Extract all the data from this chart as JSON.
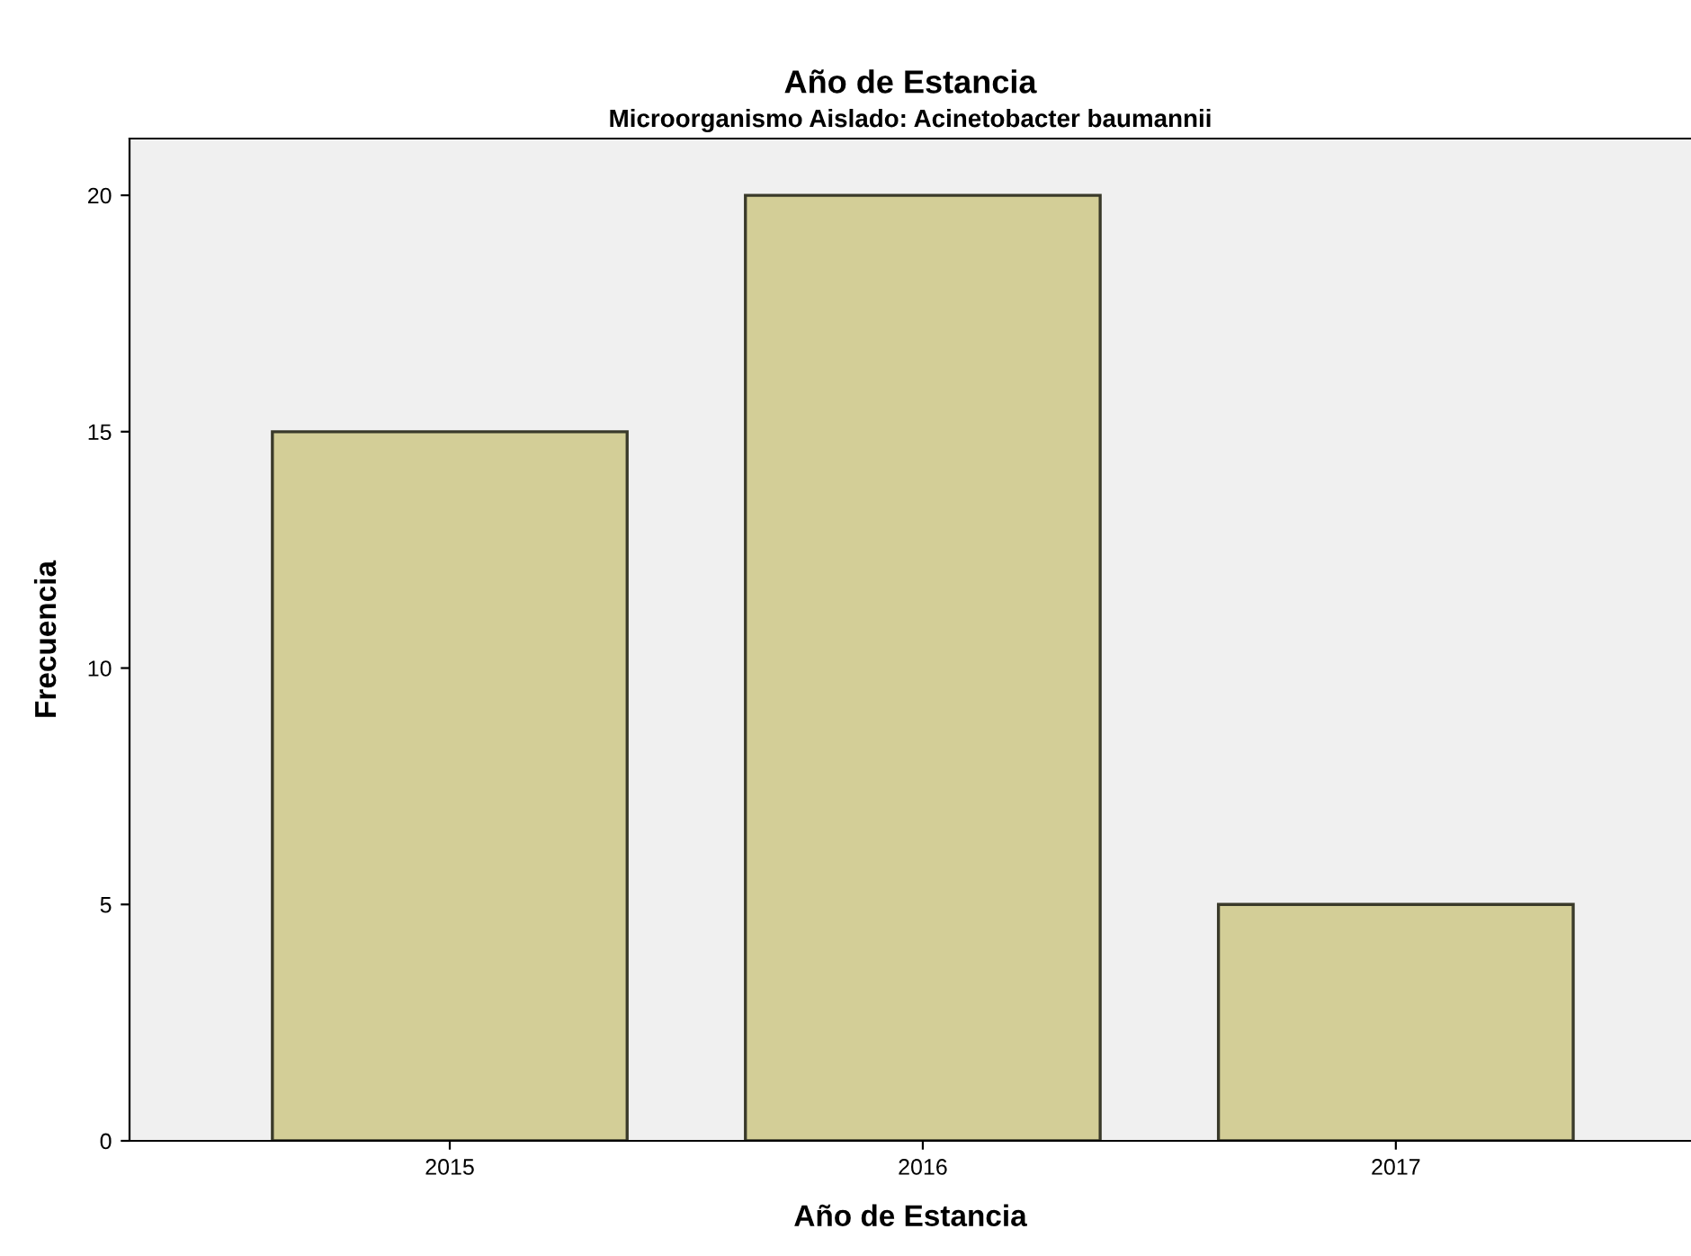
{
  "chart_data": {
    "type": "bar",
    "title": "Año de Estancia",
    "subtitle": "Microorganismo Aislado: Acinetobacter baumannii",
    "xlabel": "Año de Estancia",
    "ylabel": "Frecuencia",
    "categories": [
      "2015",
      "2016",
      "2017"
    ],
    "values": [
      15,
      20,
      5
    ],
    "color": "#d3ce97",
    "ylim": [
      0,
      21.2
    ],
    "yticks": [
      0,
      5,
      10,
      15,
      20
    ],
    "grid": false
  }
}
